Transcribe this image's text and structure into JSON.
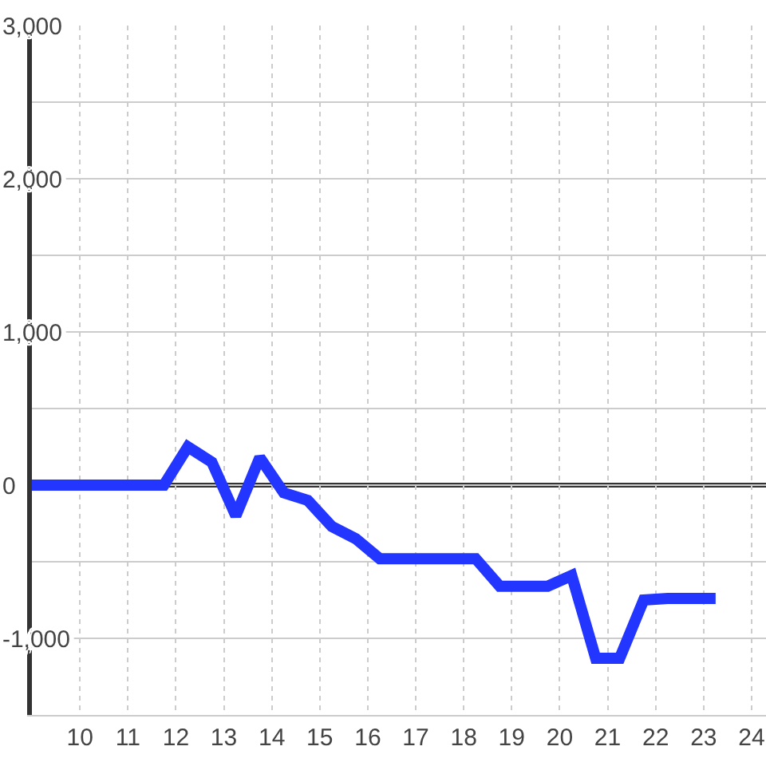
{
  "chart_data": {
    "type": "line",
    "x": [
      9,
      9.25,
      9.75,
      10.25,
      10.75,
      11.25,
      11.75,
      12.25,
      12.75,
      13.25,
      13.75,
      14.25,
      14.75,
      15.25,
      15.75,
      16.25,
      16.75,
      17.25,
      17.75,
      18.25,
      18.75,
      19.25,
      19.75,
      20.25,
      20.75,
      21.25,
      21.75,
      22.25,
      22.75,
      23.25
    ],
    "values": [
      0,
      0,
      0,
      0,
      0,
      0,
      0,
      250,
      150,
      -200,
      180,
      -50,
      -100,
      -270,
      -350,
      -480,
      -480,
      -480,
      -480,
      -480,
      -660,
      -660,
      -660,
      -590,
      -1130,
      -1130,
      -750,
      -740,
      -740,
      -740
    ],
    "color": "#2236ff",
    "xlim": [
      9,
      24.3
    ],
    "xticks": [
      10,
      11,
      12,
      13,
      14,
      15,
      16,
      17,
      18,
      19,
      20,
      21,
      22,
      23,
      24
    ],
    "ylim": [
      -1500,
      3000
    ],
    "yticks": [
      {
        "value": -1500,
        "label": null
      },
      {
        "value": -1000,
        "label": "-1,000"
      },
      {
        "value": -500,
        "label": null
      },
      0,
      {
        "value": 500,
        "label": null
      },
      {
        "value": 1000,
        "label": "1,000"
      },
      {
        "value": 1500,
        "label": null
      },
      {
        "value": 2000,
        "label": "2,000"
      },
      {
        "value": 2500,
        "label": null
      },
      {
        "value": 3000,
        "label": "3,000"
      }
    ],
    "grid": true,
    "ref_lines": [
      {
        "axis": "y",
        "value": 0,
        "color": "#333333"
      }
    ],
    "marker": "none",
    "line_style": "solid"
  }
}
